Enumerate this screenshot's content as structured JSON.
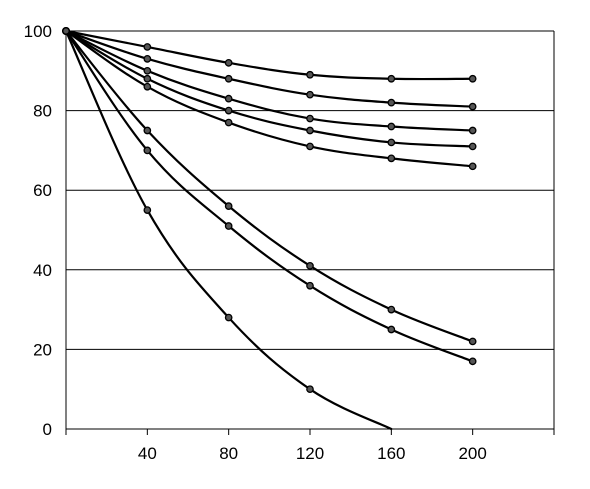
{
  "chart_data": {
    "type": "line",
    "title": "",
    "xlabel": "",
    "ylabel": "",
    "xlim": [
      0,
      240
    ],
    "ylim": [
      0,
      100
    ],
    "x_ticks": [
      40,
      80,
      120,
      160,
      200
    ],
    "y_ticks": [
      0,
      20,
      40,
      60,
      80,
      100
    ],
    "x_tick_labels": [
      "40",
      "80",
      "120",
      "160",
      "200"
    ],
    "y_tick_labels": [
      "0",
      "20",
      "40",
      "60",
      "80",
      "100"
    ],
    "grid": "horizontal",
    "legend": "none",
    "line_color": "#000000",
    "marker_fill": "#555555",
    "series": [
      {
        "x": [
          0,
          40,
          80,
          120,
          160,
          200
        ],
        "values": [
          100,
          96,
          92,
          89,
          88,
          88
        ]
      },
      {
        "x": [
          0,
          40,
          80,
          120,
          160,
          200
        ],
        "values": [
          100,
          93,
          88,
          84,
          82,
          81
        ]
      },
      {
        "x": [
          0,
          40,
          80,
          120,
          160,
          200
        ],
        "values": [
          100,
          90,
          83,
          78,
          76,
          75
        ]
      },
      {
        "x": [
          0,
          40,
          80,
          120,
          160,
          200
        ],
        "values": [
          100,
          88,
          80,
          75,
          72,
          71
        ]
      },
      {
        "x": [
          0,
          40,
          80,
          120,
          160,
          200
        ],
        "values": [
          100,
          86,
          77,
          71,
          68,
          66
        ]
      },
      {
        "x": [
          0,
          40,
          80,
          120,
          160,
          200
        ],
        "values": [
          100,
          75,
          56,
          41,
          30,
          22
        ]
      },
      {
        "x": [
          0,
          40,
          80,
          120,
          160,
          200
        ],
        "values": [
          100,
          70,
          51,
          36,
          25,
          17
        ]
      },
      {
        "x": [
          0,
          40,
          80,
          120,
          160
        ],
        "values": [
          100,
          55,
          28,
          10,
          0
        ],
        "marker_points": 4
      }
    ]
  }
}
